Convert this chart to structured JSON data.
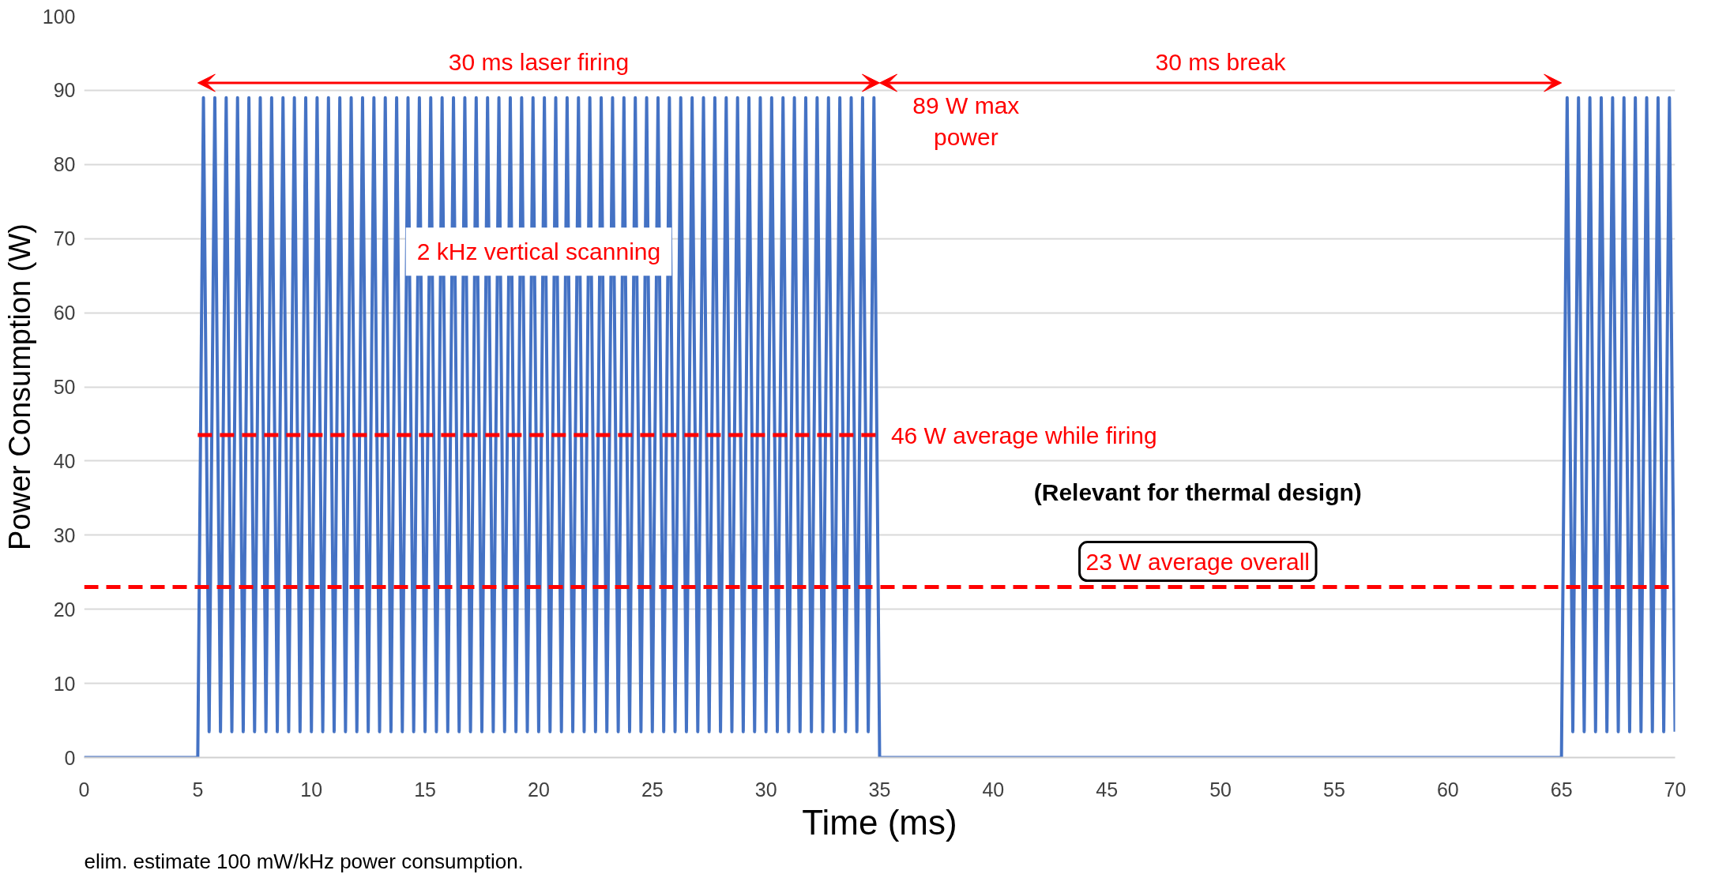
{
  "chart_data": {
    "type": "line",
    "xlabel": "Time (ms)",
    "ylabel": "Power Consumption (W)",
    "xlim": [
      0,
      70
    ],
    "xticks": [
      0,
      5,
      10,
      15,
      20,
      25,
      30,
      35,
      40,
      45,
      50,
      55,
      60,
      65,
      70
    ],
    "ylim": [
      0,
      100
    ],
    "yticks": [
      0,
      10,
      20,
      30,
      40,
      50,
      60,
      70,
      80,
      90,
      100
    ],
    "grid": "y",
    "line_style": "solid",
    "series": [
      {
        "color": "#4472c4",
        "x": [
          0,
          5,
          5.25,
          5.5,
          5.75,
          6,
          6.25,
          6.5,
          6.75,
          7,
          7.25,
          7.5,
          7.75,
          8,
          8.25,
          8.5,
          8.75,
          9,
          9.25,
          9.5,
          9.75,
          10,
          10.25,
          10.5,
          10.75,
          11,
          11.25,
          11.5,
          11.75,
          12,
          12.25,
          12.5,
          12.75,
          13,
          13.25,
          13.5,
          13.75,
          14,
          14.25,
          14.5,
          14.75,
          15,
          15.25,
          15.5,
          15.75,
          16,
          16.25,
          16.5,
          16.75,
          17,
          17.25,
          17.5,
          17.75,
          18,
          18.25,
          18.5,
          18.75,
          19,
          19.25,
          19.5,
          19.75,
          20,
          20.25,
          20.5,
          20.75,
          21,
          21.25,
          21.5,
          21.75,
          22,
          22.25,
          22.5,
          22.75,
          23,
          23.25,
          23.5,
          23.75,
          24,
          24.25,
          24.5,
          24.75,
          25,
          25.25,
          25.5,
          25.75,
          26,
          26.25,
          26.5,
          26.75,
          27,
          27.25,
          27.5,
          27.75,
          28,
          28.25,
          28.5,
          28.75,
          29,
          29.25,
          29.5,
          29.75,
          30,
          30.25,
          30.5,
          30.75,
          31,
          31.25,
          31.5,
          31.75,
          32,
          32.25,
          32.5,
          32.75,
          33,
          33.25,
          33.5,
          33.75,
          34,
          34.25,
          34.5,
          34.75,
          35,
          65,
          65.25,
          65.5,
          65.75,
          66,
          66.25,
          66.5,
          66.75,
          67,
          67.25,
          67.5,
          67.75,
          68,
          68.25,
          68.5,
          68.75,
          69,
          69.25,
          69.5,
          69.75,
          70
        ],
        "values": [
          0,
          0,
          89,
          3.5,
          89,
          3.5,
          89,
          3.5,
          89,
          3.5,
          89,
          3.5,
          89,
          3.5,
          89,
          3.5,
          89,
          3.5,
          89,
          3.5,
          89,
          3.5,
          89,
          3.5,
          89,
          3.5,
          89,
          3.5,
          89,
          3.5,
          89,
          3.5,
          89,
          3.5,
          89,
          3.5,
          89,
          3.5,
          89,
          3.5,
          89,
          3.5,
          89,
          3.5,
          89,
          3.5,
          89,
          3.5,
          89,
          3.5,
          89,
          3.5,
          89,
          3.5,
          89,
          3.5,
          89,
          3.5,
          89,
          3.5,
          89,
          3.5,
          89,
          3.5,
          89,
          3.5,
          89,
          3.5,
          89,
          3.5,
          89,
          3.5,
          89,
          3.5,
          89,
          3.5,
          89,
          3.5,
          89,
          3.5,
          89,
          3.5,
          89,
          3.5,
          89,
          3.5,
          89,
          3.5,
          89,
          3.5,
          89,
          3.5,
          89,
          3.5,
          89,
          3.5,
          89,
          3.5,
          89,
          3.5,
          89,
          3.5,
          89,
          3.5,
          89,
          3.5,
          89,
          3.5,
          89,
          3.5,
          89,
          3.5,
          89,
          3.5,
          89,
          3.5,
          89,
          3.5,
          89,
          3.5,
          89,
          0,
          0,
          89,
          3.5,
          89,
          3.5,
          89,
          3.5,
          89,
          3.5,
          89,
          3.5,
          89,
          3.5,
          89,
          3.5,
          89,
          3.5,
          89,
          3.5,
          89,
          3.5
        ]
      },
      {
        "color": "#ff0000",
        "line_style": "dashed",
        "x": [
          5,
          35
        ],
        "values": [
          43.5,
          43.5
        ]
      }
    ],
    "ref_lines": [
      {
        "axis": "y",
        "value": 23,
        "label": "23 W average overall",
        "color": "#ff0000",
        "line_style": "dashed"
      }
    ],
    "annotations": [
      "30 ms laser firing",
      "30 ms break",
      "89 W max\npower",
      {
        "text": "2 kHz vertical scanning",
        "x": 20,
        "y": 65
      },
      "46 W average while firing",
      "(Relevant for thermal design)",
      "elim. estimate 100 mW/kHz power consumption."
    ]
  }
}
